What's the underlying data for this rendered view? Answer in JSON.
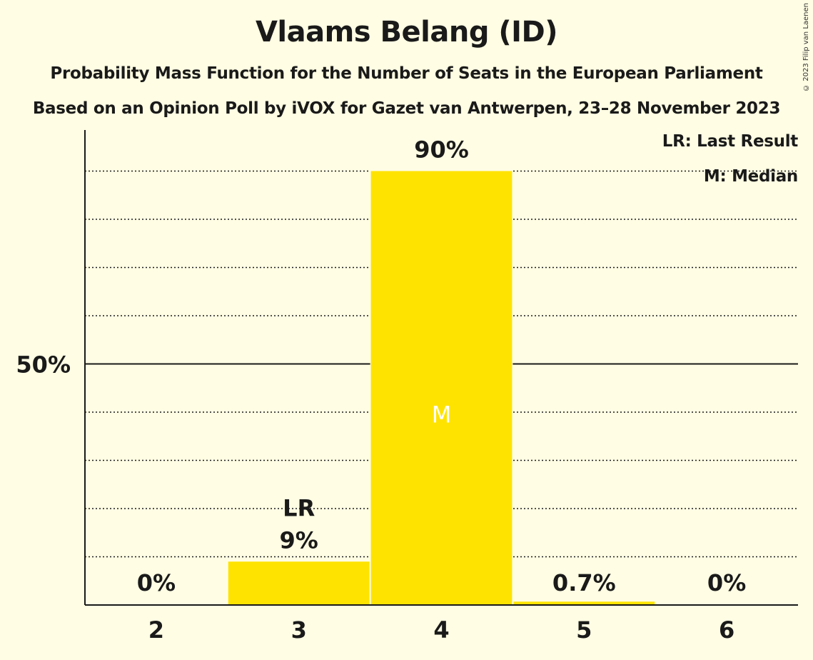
{
  "chart_data": {
    "type": "bar",
    "title": "Vlaams Belang (ID)",
    "subtitle": "Probability Mass Function for the Number of Seats in the European Parliament",
    "subtitle2": "Based on an Opinion Poll by iVOX for Gazet van Antwerpen, 23–28 November 2023",
    "categories": [
      "2",
      "3",
      "4",
      "5",
      "6"
    ],
    "values": [
      0,
      9,
      90,
      0.7,
      0
    ],
    "value_labels": [
      "0%",
      "9%",
      "90%",
      "0.7%",
      "0%"
    ],
    "last_result_category": "3",
    "median_category": "4",
    "markers": {
      "last_result": "LR",
      "median": "M"
    },
    "ylim": [
      0,
      100
    ],
    "y_tick_labels": [
      {
        "value": 50,
        "label": "50%"
      }
    ],
    "grid": true,
    "grid_step": 10,
    "legend": [
      "LR: Last Result",
      "M: Median"
    ],
    "legend_position": "top-right",
    "xlabel": "",
    "ylabel": "",
    "colors": {
      "bar": "#FFE300",
      "background": "#FFFDE3",
      "median_marker": "#FFFFFF"
    }
  },
  "copyright": "© 2023 Filip van Laenen"
}
